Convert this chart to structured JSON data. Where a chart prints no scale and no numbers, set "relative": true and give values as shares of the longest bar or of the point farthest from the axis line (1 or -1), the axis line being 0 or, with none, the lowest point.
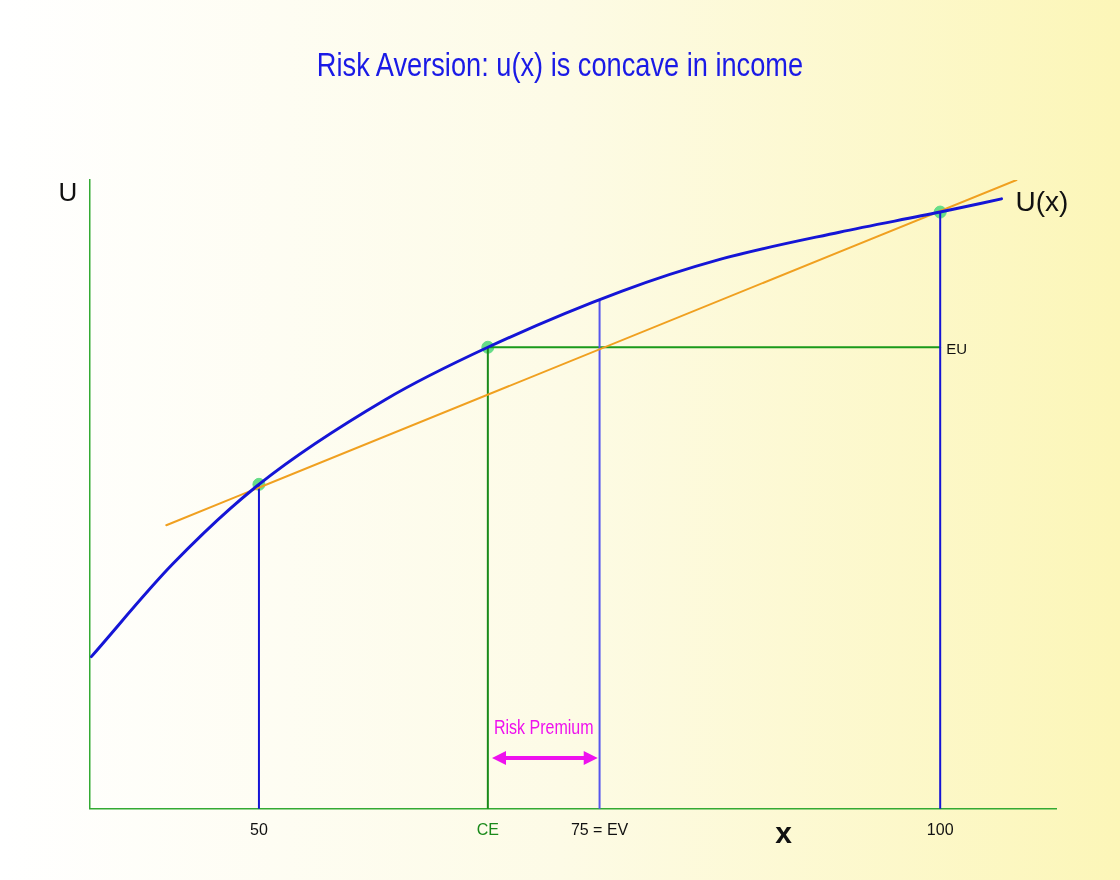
{
  "chart_data": {
    "type": "line",
    "title": "Risk Aversion: u(x) is concave in  income",
    "xlabel": "x",
    "ylabel": "U",
    "relative": true,
    "xlim": [
      37.6,
      108.5
    ],
    "xticks": [
      50,
      {
        "value": 66.8,
        "label": "CE"
      },
      {
        "value": 75,
        "label": "75 = EV"
      },
      100
    ],
    "tick_labels": "x",
    "grid": false,
    "legend": false,
    "marker": "none",
    "line_style": "solid",
    "series": [
      {
        "name": "U(x)",
        "color": "#1515d6",
        "x": [
          37.7,
          43.7,
          50,
          59.3,
          66.8,
          76.6,
          83.7,
          92.6,
          100,
          104.5
        ],
        "values": [
          0.242,
          0.39,
          0.516,
          0.651,
          0.734,
          0.823,
          0.873,
          0.917,
          0.949,
          0.97
        ]
      },
      {
        "type": "line",
        "color": "#f0a020",
        "x": [
          43.2,
          105.6
        ],
        "values": [
          0.451,
          1
        ]
      },
      {
        "type": "line",
        "color": "#1515d6",
        "x": [
          50,
          50
        ],
        "values": [
          0,
          0.516
        ]
      },
      {
        "type": "line",
        "color": "#1a8a1a",
        "x": [
          66.8,
          66.8
        ],
        "values": [
          0,
          0.734
        ]
      },
      {
        "type": "line",
        "color": "#5555ee",
        "x": [
          75,
          75
        ],
        "values": [
          0,
          0.807
        ]
      },
      {
        "type": "line",
        "color": "#1515d6",
        "x": [
          100,
          100
        ],
        "values": [
          0,
          0.949
        ]
      },
      {
        "type": "line",
        "color": "#1a9a1a",
        "x": [
          66.8,
          100
        ],
        "values": [
          0.734,
          0.734
        ]
      },
      {
        "type": "scatter",
        "color": "#66dd88",
        "marker": "circle",
        "x": [
          50,
          66.8,
          100
        ],
        "values": [
          0.516,
          0.734,
          0.949
        ]
      }
    ],
    "annotations": [
      {
        "text": "EU",
        "x": 100,
        "y": 0.734
      },
      "Risk Premium"
    ]
  }
}
